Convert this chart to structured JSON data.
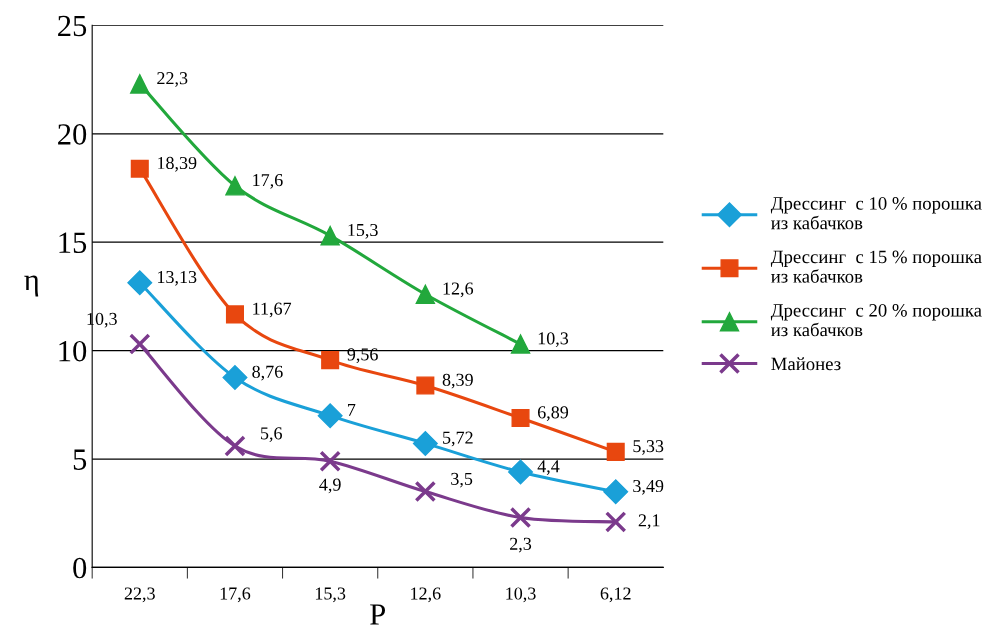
{
  "chart_data": {
    "type": "line",
    "xlabel": "P",
    "ylabel": "η",
    "categories": [
      "22,3",
      "17,6",
      "15,3",
      "12,6",
      "10,3",
      "6,12"
    ],
    "ylim": [
      0,
      25
    ],
    "yticks": [
      0,
      5,
      10,
      15,
      20,
      25
    ],
    "grid": "y",
    "legend": "right",
    "series": [
      {
        "name": "Дрессинг  с 10 % порошка из кабачков",
        "color": "#1aa0d8",
        "marker": "diamond",
        "values": [
          13.13,
          8.76,
          7,
          5.72,
          4.4,
          3.49
        ],
        "value_labels": [
          "13,13",
          "8,76",
          "7",
          "5,72",
          "4,4",
          "3,49"
        ]
      },
      {
        "name": "Дрессинг  с 15 % порошка из кабачков",
        "color": "#e8470f",
        "marker": "square",
        "values": [
          18.39,
          11.67,
          9.56,
          8.39,
          6.89,
          5.33
        ],
        "value_labels": [
          "18,39",
          "11,67",
          "9,56",
          "8,39",
          "6,89",
          "5,33"
        ]
      },
      {
        "name": "Дрессинг  с 20 % порошка из кабачков",
        "color": "#22a83c",
        "marker": "triangle",
        "values": [
          22.3,
          17.6,
          15.3,
          12.6,
          10.3,
          null
        ],
        "value_labels": [
          "22,3",
          "17,6",
          "15,3",
          "12,6",
          "10,3",
          null
        ]
      },
      {
        "name": "Майонез",
        "color": "#7b3a8c",
        "marker": "cross",
        "values": [
          10.3,
          5.6,
          4.9,
          3.5,
          2.3,
          2.1
        ],
        "value_labels": [
          "10,3",
          "5,6",
          "4,9",
          "3,5",
          "2,3",
          "2,1"
        ]
      }
    ]
  }
}
